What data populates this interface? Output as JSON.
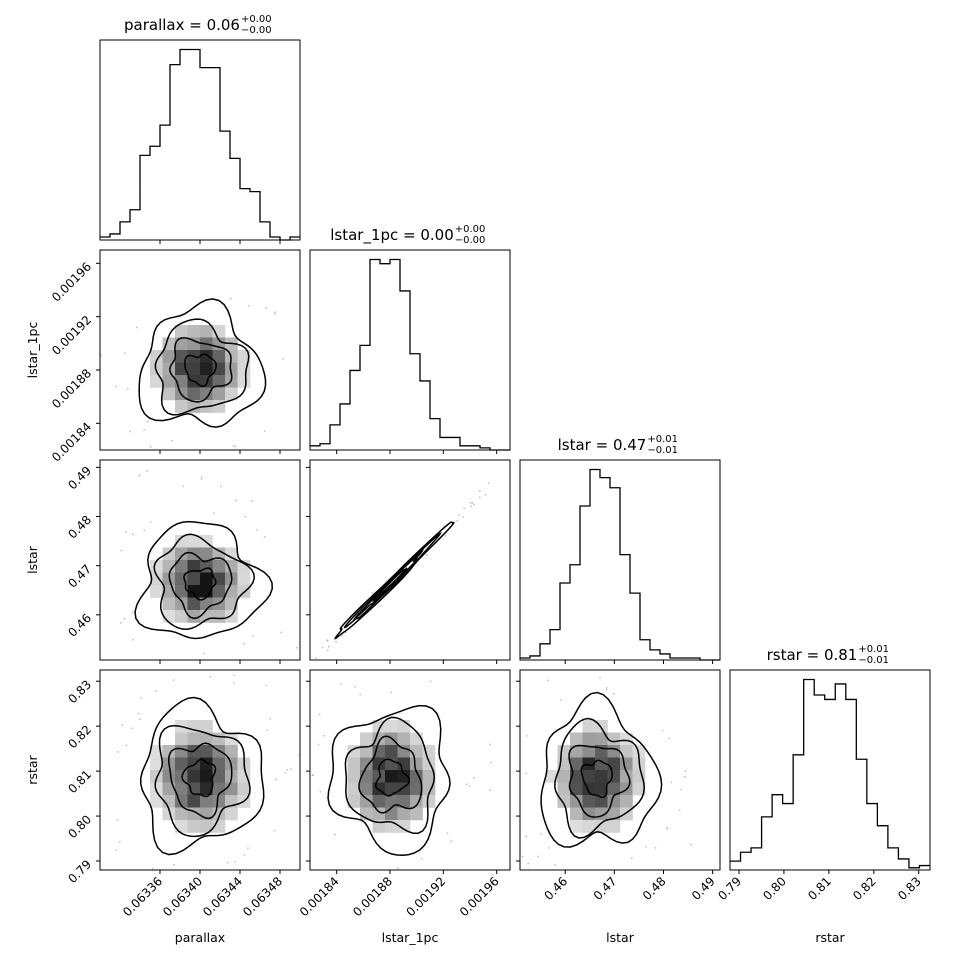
{
  "chart_data": {
    "type": "corner",
    "parameters": [
      {
        "name": "parallax",
        "label": "parallax",
        "range": [
          0.0633,
          0.0635
        ],
        "ticks": [
          0.06336,
          0.0634,
          0.06344,
          0.06348
        ],
        "tick_labels": [
          "0.06336",
          "0.06340",
          "0.06344",
          "0.06348"
        ],
        "title_prefix": "parallax = ",
        "title_value": "0.06",
        "title_upper": "+0.00",
        "title_lower": "−0.00",
        "hist": [
          1,
          2,
          6,
          10,
          28,
          31,
          38,
          58,
          63,
          63,
          57,
          57,
          36,
          27,
          17,
          16,
          6,
          1,
          0,
          1
        ],
        "hist_max": 63
      },
      {
        "name": "lstar_1pc",
        "label": "lstar_1pc",
        "range": [
          0.00182,
          0.00197
        ],
        "ticks": [
          0.00184,
          0.00188,
          0.00192,
          0.00196
        ],
        "tick_labels": [
          "0.00184",
          "0.00188",
          "0.00192",
          "0.00196"
        ],
        "title_prefix": "lstar_1pc = ",
        "title_value": "0.00",
        "title_upper": "+0.00",
        "title_lower": "−0.00",
        "hist": [
          2,
          3,
          12,
          22,
          38,
          50,
          91,
          89,
          91,
          76,
          46,
          33,
          15,
          6,
          6,
          2,
          2,
          1,
          0,
          0
        ],
        "hist_max": 91
      },
      {
        "name": "lstar",
        "label": "lstar",
        "range": [
          0.4508,
          0.4915
        ],
        "ticks": [
          0.46,
          0.47,
          0.48,
          0.49
        ],
        "tick_labels": [
          "0.46",
          "0.47",
          "0.48",
          "0.49"
        ],
        "title_prefix": "lstar = ",
        "title_value": "0.47",
        "title_upper": "+0.01",
        "title_lower": "−0.01",
        "hist": [
          1,
          2,
          8,
          15,
          38,
          47,
          76,
          94,
          90,
          85,
          52,
          33,
          10,
          5,
          3,
          1,
          1,
          1,
          0,
          0
        ],
        "hist_max": 94
      },
      {
        "name": "rstar",
        "label": "rstar",
        "range": [
          0.788,
          0.8325
        ],
        "ticks": [
          0.79,
          0.8,
          0.81,
          0.82,
          0.83
        ],
        "tick_labels": [
          "0.79",
          "0.80",
          "0.81",
          "0.82",
          "0.83"
        ],
        "title_prefix": "rstar = ",
        "title_value": "0.81",
        "title_upper": "+0.01",
        "title_lower": "−0.01",
        "hist": [
          4,
          8,
          10,
          24,
          34,
          30,
          52,
          86,
          79,
          77,
          84,
          77,
          50,
          30,
          20,
          10,
          5,
          1,
          2
        ],
        "hist_max": 86
      }
    ],
    "pairs": [
      {
        "x": "parallax",
        "y": "lstar_1pc",
        "center": [
          0.0634,
          0.001881
        ],
        "spread": [
          2.42e-05,
          1.76e-05
        ],
        "corr": 0.0
      },
      {
        "x": "parallax",
        "y": "lstar",
        "center": [
          0.0634,
          0.4665
        ],
        "spread": [
          2.42e-05,
          0.0047
        ],
        "corr": 0.0
      },
      {
        "x": "lstar_1pc",
        "y": "lstar",
        "center": [
          0.001881,
          0.4665
        ],
        "spread": [
          1.76e-05,
          0.0047
        ],
        "corr": 0.998
      },
      {
        "x": "parallax",
        "y": "rstar",
        "center": [
          0.0634,
          0.8085
        ],
        "spread": [
          2.42e-05,
          0.0062
        ],
        "corr": 0.0
      },
      {
        "x": "lstar_1pc",
        "y": "rstar",
        "center": [
          0.001881,
          0.8085
        ],
        "spread": [
          1.76e-05,
          0.0062
        ],
        "corr": 0.0
      },
      {
        "x": "lstar",
        "y": "rstar",
        "center": [
          0.4665,
          0.8085
        ],
        "spread": [
          0.0047,
          0.0062
        ],
        "corr": 0.0
      }
    ],
    "contour_levels_sigma": [
      0.5,
      1.0,
      1.5,
      2.0
    ]
  }
}
